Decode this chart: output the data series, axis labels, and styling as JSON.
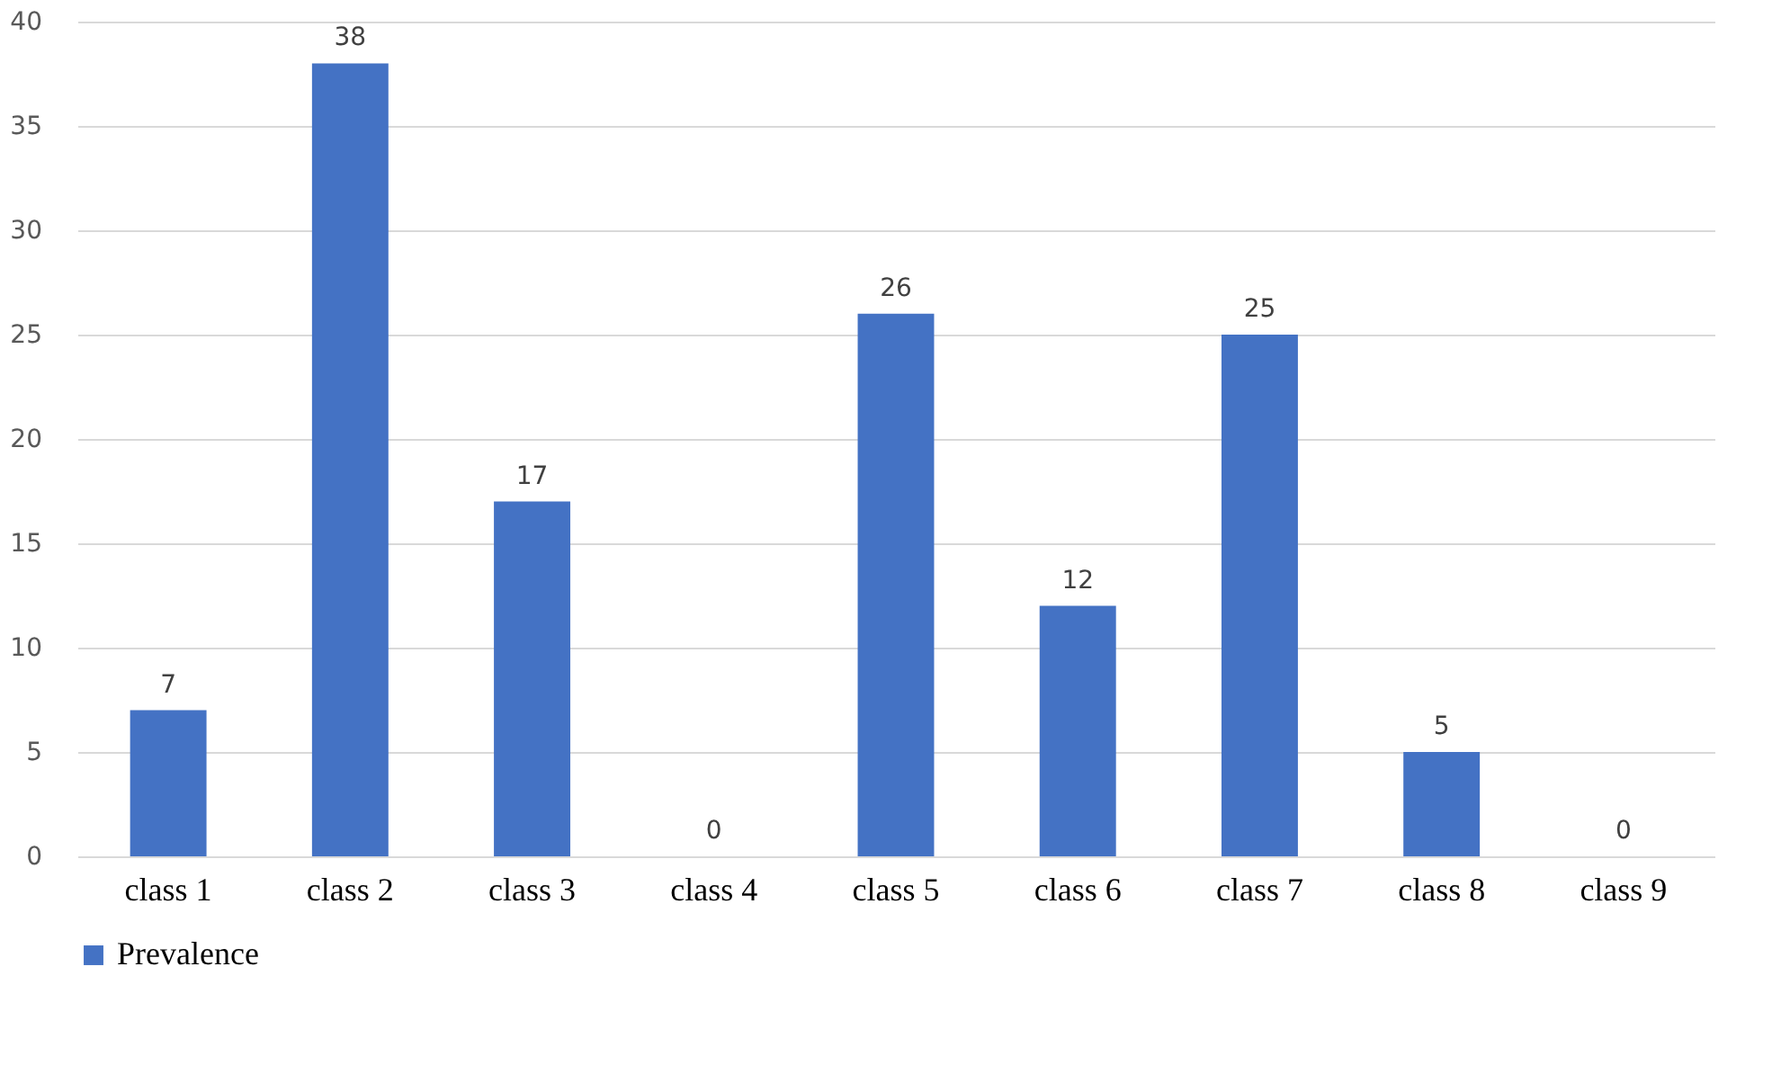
{
  "chart_data": {
    "type": "bar",
    "categories": [
      "class 1",
      "class 2",
      "class 3",
      "class 4",
      "class 5",
      "class 6",
      "class 7",
      "class 8",
      "class 9"
    ],
    "series": [
      {
        "name": "Prevalence",
        "color": "#4472c4",
        "values": [
          7,
          38,
          17,
          0,
          26,
          12,
          25,
          5,
          0
        ]
      }
    ],
    "ylim": [
      0,
      40
    ],
    "yticks": [
      0,
      5,
      10,
      15,
      20,
      25,
      30,
      35,
      40
    ],
    "grid": "y",
    "legend": "bottom",
    "data_labels": true
  }
}
